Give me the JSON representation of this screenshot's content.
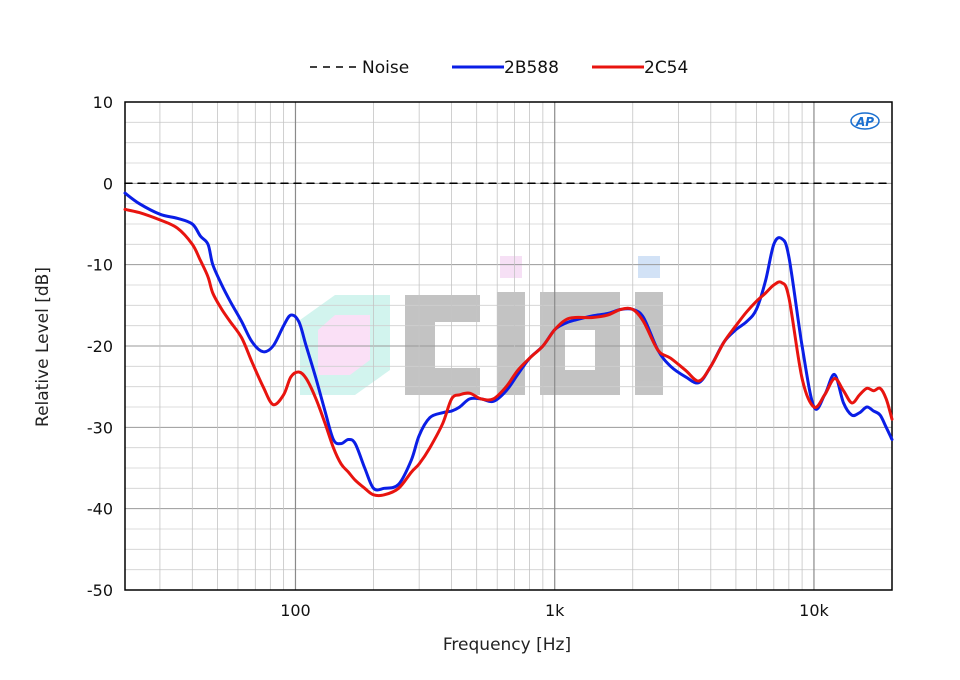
{
  "chart_data": {
    "type": "line",
    "xlabel": "Frequency [Hz]",
    "ylabel": "Relative Level [dB]",
    "xscale": "log",
    "xlim": [
      22,
      20000
    ],
    "ylim": [
      -50,
      10
    ],
    "grid": true,
    "legend_position": "top-center",
    "x_tick_values": [
      100,
      1000,
      10000
    ],
    "x_tick_labels": [
      "100",
      "1k",
      "10k"
    ],
    "y_tick_values": [
      10,
      0,
      -10,
      -20,
      -30,
      -40,
      -50
    ],
    "y_tick_labels": [
      "10",
      "0",
      "-10",
      "-20",
      "-30",
      "-40",
      "-50"
    ],
    "logo_text": "AP",
    "watermark_text": "CIHI",
    "series": [
      {
        "name": "Noise",
        "color": "#000000",
        "dash": true,
        "x": [
          22,
          20000
        ],
        "y": [
          0,
          0
        ]
      },
      {
        "name": "2B588",
        "color": "#0a1ee6",
        "dash": false,
        "x": [
          22,
          25,
          30,
          35,
          40,
          43,
          46,
          48,
          52,
          56,
          62,
          68,
          75,
          82,
          90,
          96,
          103,
          110,
          120,
          130,
          140,
          150,
          160,
          170,
          185,
          200,
          220,
          250,
          280,
          300,
          330,
          370,
          400,
          430,
          470,
          520,
          580,
          650,
          720,
          800,
          900,
          1000,
          1100,
          1200,
          1400,
          1600,
          1800,
          2000,
          2200,
          2500,
          2800,
          3200,
          3600,
          4000,
          4500,
          5000,
          5500,
          6000,
          6500,
          7000,
          7500,
          8000,
          9000,
          10000,
          11000,
          12000,
          13000,
          14000,
          15000,
          16000,
          17000,
          18000,
          19000,
          20000
        ],
        "y": [
          -1.2,
          -2.5,
          -3.8,
          -4.3,
          -5.0,
          -6.5,
          -7.5,
          -10.0,
          -12.5,
          -14.5,
          -17.0,
          -19.5,
          -20.7,
          -20.0,
          -17.5,
          -16.2,
          -17.0,
          -20.0,
          -24.0,
          -28.0,
          -31.5,
          -32.0,
          -31.5,
          -32.0,
          -35.0,
          -37.5,
          -37.5,
          -37.0,
          -34.0,
          -31.0,
          -28.8,
          -28.2,
          -28.0,
          -27.5,
          -26.5,
          -26.5,
          -26.8,
          -25.5,
          -23.5,
          -21.5,
          -20.0,
          -18.0,
          -17.2,
          -16.8,
          -16.3,
          -16.0,
          -15.5,
          -15.5,
          -16.5,
          -20.5,
          -22.5,
          -23.8,
          -24.5,
          -22.5,
          -19.5,
          -18.0,
          -17.0,
          -15.5,
          -12.0,
          -7.5,
          -6.8,
          -9.0,
          -20.0,
          -27.5,
          -26.0,
          -23.5,
          -27.0,
          -28.5,
          -28.2,
          -27.5,
          -28.0,
          -28.5,
          -30.0,
          -31.5
        ]
      },
      {
        "name": "2C54",
        "color": "#e8140f",
        "dash": false,
        "x": [
          22,
          25,
          30,
          35,
          40,
          43,
          46,
          48,
          52,
          56,
          62,
          68,
          75,
          82,
          90,
          96,
          103,
          110,
          120,
          130,
          140,
          150,
          160,
          170,
          185,
          200,
          220,
          250,
          280,
          300,
          330,
          370,
          400,
          430,
          470,
          520,
          580,
          650,
          720,
          800,
          900,
          1000,
          1100,
          1200,
          1400,
          1600,
          1800,
          2000,
          2200,
          2500,
          2800,
          3200,
          3600,
          4000,
          4500,
          5000,
          5500,
          6000,
          6500,
          7000,
          7500,
          8000,
          9000,
          10000,
          11000,
          12000,
          13000,
          14000,
          15000,
          16000,
          17000,
          18000,
          19000,
          20000
        ],
        "y": [
          -3.2,
          -3.6,
          -4.5,
          -5.5,
          -7.5,
          -9.5,
          -11.5,
          -13.5,
          -15.5,
          -17.0,
          -19.0,
          -22.0,
          -25.0,
          -27.2,
          -26.0,
          -23.8,
          -23.2,
          -24.0,
          -26.5,
          -29.5,
          -32.5,
          -34.5,
          -35.5,
          -36.5,
          -37.5,
          -38.3,
          -38.3,
          -37.5,
          -35.5,
          -34.5,
          -32.5,
          -29.5,
          -26.5,
          -26.0,
          -25.8,
          -26.5,
          -26.5,
          -25.0,
          -23.0,
          -21.5,
          -20.0,
          -18.0,
          -16.8,
          -16.5,
          -16.5,
          -16.2,
          -15.5,
          -15.5,
          -17.0,
          -20.5,
          -21.5,
          -23.0,
          -24.3,
          -22.5,
          -19.5,
          -17.5,
          -15.8,
          -14.5,
          -13.5,
          -12.5,
          -12.2,
          -14.0,
          -24.0,
          -27.5,
          -26.0,
          -24.0,
          -25.5,
          -27.0,
          -26.0,
          -25.2,
          -25.5,
          -25.2,
          -26.5,
          -29.0
        ]
      }
    ]
  }
}
